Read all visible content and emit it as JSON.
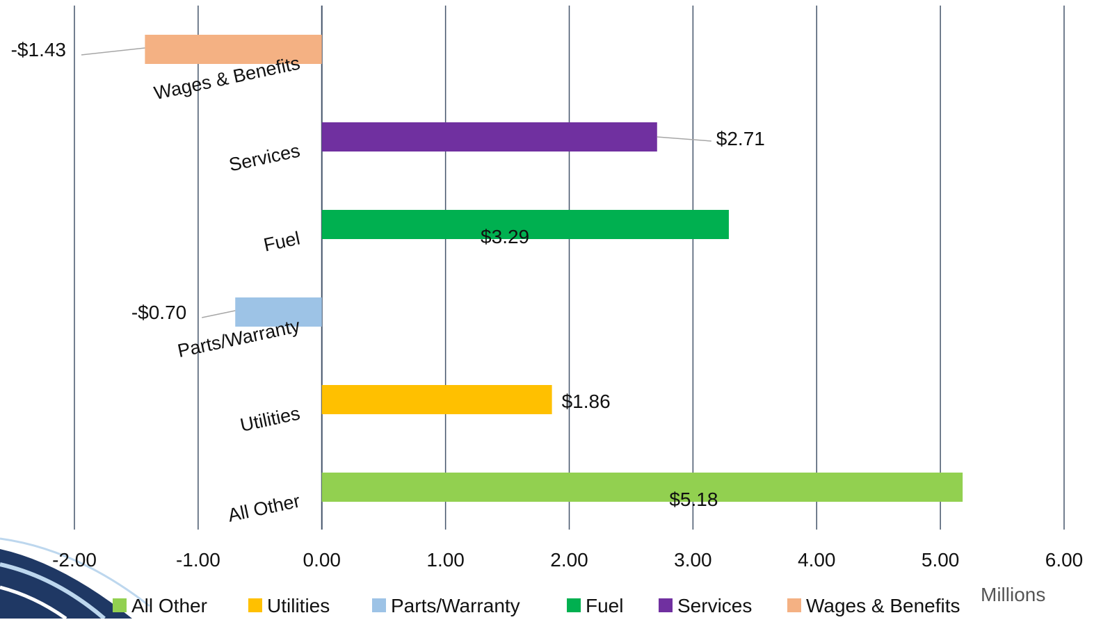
{
  "chart_data": {
    "type": "bar",
    "orientation": "horizontal",
    "categories": [
      "Wages & Benefits",
      "Services",
      "Fuel",
      "Parts/Warranty",
      "Utilities",
      "All Other"
    ],
    "values": [
      -1.43,
      2.71,
      3.29,
      -0.7,
      1.86,
      5.18
    ],
    "data_labels": [
      "-$1.43",
      "$2.71",
      "$3.29",
      "-$0.70",
      "$1.86",
      "$5.18"
    ],
    "colors": [
      "#F4B183",
      "#7030A0",
      "#00B050",
      "#9DC3E6",
      "#FFC000",
      "#92D050"
    ],
    "xlim": [
      -2,
      6
    ],
    "xticks": [
      -2,
      -1,
      0,
      1,
      2,
      3,
      4,
      5,
      6
    ],
    "xtick_labels": [
      "-2.00",
      "-1.00",
      "0.00",
      "1.00",
      "2.00",
      "3.00",
      "4.00",
      "5.00",
      "6.00"
    ],
    "x_unit_label": "Millions",
    "grid": true,
    "legend_position": "bottom",
    "legend": [
      {
        "label": "All Other",
        "color": "#92D050"
      },
      {
        "label": "Utilities",
        "color": "#FFC000"
      },
      {
        "label": "Parts/Warranty",
        "color": "#9DC3E6"
      },
      {
        "label": "Fuel",
        "color": "#00B050"
      },
      {
        "label": "Services",
        "color": "#7030A0"
      },
      {
        "label": "Wages & Benefits",
        "color": "#F4B183"
      }
    ],
    "decoration_colors": {
      "gridline": "#44546A",
      "leader": "#A6A6A6",
      "swoosh_dark": "#1F3864",
      "swoosh_light": "#BDD7EE"
    }
  }
}
